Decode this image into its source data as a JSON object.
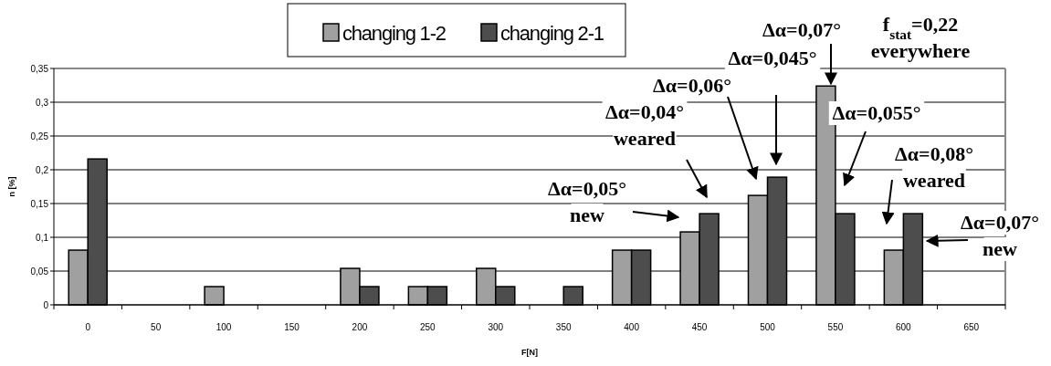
{
  "chart_data": {
    "type": "bar",
    "categories": [
      "0",
      "50",
      "100",
      "150",
      "200",
      "250",
      "300",
      "350",
      "400",
      "450",
      "500",
      "550",
      "600",
      "650"
    ],
    "series": [
      {
        "name": "changing 1-2",
        "color": "#a0a0a0",
        "values": [
          0.081,
          0,
          0.027,
          0,
          0.054,
          0.027,
          0.054,
          0,
          0.081,
          0.108,
          0.162,
          0.324,
          0.081,
          0
        ]
      },
      {
        "name": "changing 2-1",
        "color": "#4d4d4d",
        "values": [
          0.216,
          0,
          0,
          0,
          0.027,
          0.027,
          0.027,
          0.027,
          0.081,
          0.135,
          0.189,
          0.135,
          0.135,
          0
        ]
      }
    ],
    "xlabel": "F[N]",
    "ylabel": "n [%]",
    "ylim": [
      0,
      0.35
    ],
    "yticks": [
      0,
      {
        "value": 0.05,
        "label": "0,05"
      },
      {
        "value": 0.1,
        "label": "0,1"
      },
      {
        "value": 0.15,
        "label": "0,15"
      },
      {
        "value": 0.2,
        "label": "0,2"
      },
      {
        "value": 0.25,
        "label": "0,25"
      },
      {
        "value": 0.3,
        "label": "0,3"
      },
      {
        "value": 0.35,
        "label": "0,35"
      }
    ],
    "grid": "y",
    "legend": "top",
    "annotations": [
      "Δα=0,05°\nnew",
      "Δα=0,04°\nweared",
      "Δα=0,06°",
      "Δα=0,045°",
      "Δα=0,07°",
      "f$_{stat}$=0,22\neverywhere",
      "Δα=0,055°",
      "Δα=0,08°\nweared",
      "Δα=0,07°\nnew"
    ]
  }
}
